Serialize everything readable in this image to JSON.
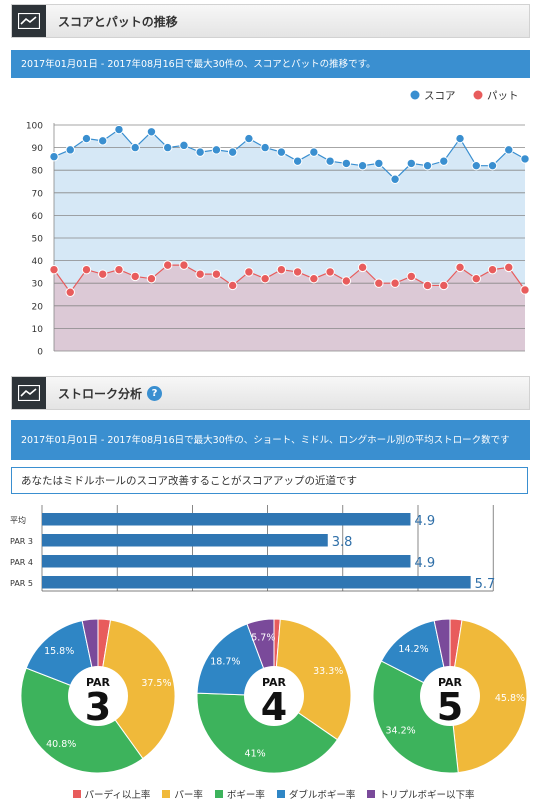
{
  "section1": {
    "title": "スコアとパットの推移",
    "info": "2017年01月01日 - 2017年08月16日で最大30件の、スコアとパットの推移です。"
  },
  "trend_chart": {
    "legend": {
      "score": "スコア",
      "putt": "パット"
    },
    "colors": {
      "score": "#3a8fd0",
      "putt": "#e85c5c",
      "score_fill": "#d6e8f6",
      "putt_fill": "#dcc9d6"
    },
    "y_ticks": [
      "100",
      "90",
      "80",
      "70",
      "60",
      "50",
      "40",
      "30",
      "20",
      "10",
      "0"
    ]
  },
  "section2": {
    "title": "ストローク分析",
    "info": "2017年01月01日 - 2017年08月16日で最大30件の、ショート、ミドル、ロングホール別の平均ストローク数です",
    "advice": "あなたはミドルホールのスコア改善することがスコアアップの近道です"
  },
  "pie_legend": [
    {
      "label": "パーディ以上率",
      "color": "#e85c5c"
    },
    {
      "label": "パー率",
      "color": "#f0b93a"
    },
    {
      "label": "ボギー率",
      "color": "#3db35c"
    },
    {
      "label": "ダブルボギー率",
      "color": "#2f86c5"
    },
    {
      "label": "トリプルボギー以下率",
      "color": "#7a4a9a"
    }
  ],
  "chart_data": [
    {
      "type": "line",
      "title": "",
      "x": [
        1,
        2,
        3,
        4,
        5,
        6,
        7,
        8,
        9,
        10,
        11,
        12,
        13,
        14,
        15,
        16,
        17,
        18,
        19,
        20,
        21,
        22,
        23,
        24,
        25,
        26,
        27,
        28,
        29,
        30
      ],
      "series": [
        {
          "name": "スコア",
          "values": [
            86,
            89,
            94,
            93,
            98,
            90,
            97,
            90,
            91,
            88,
            89,
            88,
            94,
            90,
            88,
            84,
            88,
            84,
            83,
            82,
            83,
            76,
            83,
            82,
            84,
            94,
            82,
            82,
            89,
            85
          ]
        },
        {
          "name": "パット",
          "values": [
            36,
            26,
            36,
            34,
            36,
            33,
            32,
            38,
            38,
            34,
            34,
            29,
            35,
            32,
            36,
            35,
            32,
            35,
            31,
            37,
            30,
            30,
            33,
            29,
            29,
            37,
            32,
            36,
            37,
            27
          ]
        }
      ],
      "ylim": [
        0,
        100
      ],
      "grid": true,
      "legend": "top-right"
    },
    {
      "type": "bar",
      "title": "",
      "categories": [
        "平均",
        "PAR 3",
        "PAR 4",
        "PAR 5"
      ],
      "values": [
        4.9,
        3.8,
        4.9,
        5.7
      ],
      "value_labels": [
        "4.9",
        "3.8",
        "4.9",
        "5.7"
      ],
      "color": "#2f76b3",
      "label_color": "#2f6fa8",
      "grid": true
    },
    {
      "type": "pie",
      "center_label": "PAR",
      "center_number": "3",
      "slices": [
        {
          "name": "パーディ以上率",
          "value": 2.6,
          "label": ""
        },
        {
          "name": "パー率",
          "value": 37.5,
          "label": "37.5%"
        },
        {
          "name": "ボギー率",
          "value": 40.8,
          "label": "40.8%"
        },
        {
          "name": "ダブルボギー率",
          "value": 15.8,
          "label": "15.8%"
        },
        {
          "name": "トリプルボギー以下率",
          "value": 3.3,
          "label": ""
        }
      ]
    },
    {
      "type": "pie",
      "center_label": "PAR",
      "center_number": "4",
      "slices": [
        {
          "name": "パーディ以上率",
          "value": 1.3,
          "label": ""
        },
        {
          "name": "パー率",
          "value": 33.3,
          "label": "33.3%"
        },
        {
          "name": "ボギー率",
          "value": 41,
          "label": "41%"
        },
        {
          "name": "ダブルボギー率",
          "value": 18.7,
          "label": "18.7%"
        },
        {
          "name": "トリプルボギー以下率",
          "value": 5.7,
          "label": "5.7%"
        }
      ]
    },
    {
      "type": "pie",
      "center_label": "PAR",
      "center_number": "5",
      "slices": [
        {
          "name": "パーディ以上率",
          "value": 2.5,
          "label": ""
        },
        {
          "name": "パー率",
          "value": 45.8,
          "label": "45.8%"
        },
        {
          "name": "ボギー率",
          "value": 34.2,
          "label": "34.2%"
        },
        {
          "name": "ダブルボギー率",
          "value": 14.2,
          "label": "14.2%"
        },
        {
          "name": "トリプルボギー以下率",
          "value": 3.3,
          "label": ""
        }
      ]
    }
  ]
}
